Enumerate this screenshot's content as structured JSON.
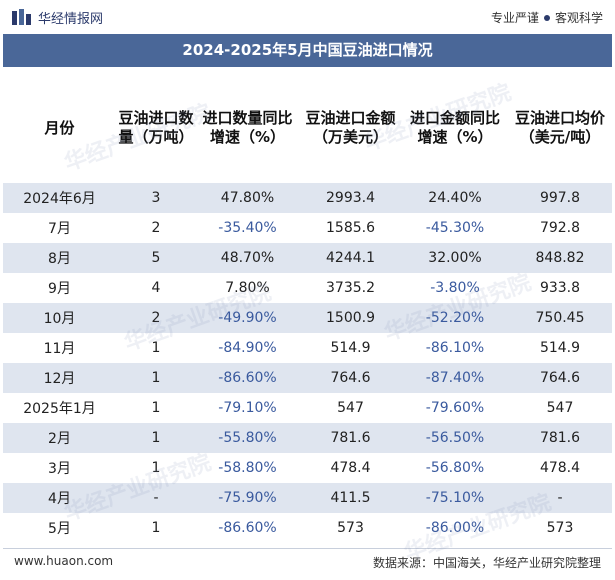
{
  "header": {
    "logo_text": "华经情报网",
    "tag_left": "专业严谨",
    "tag_right": "客观科学"
  },
  "title": "2024-2025年5月中国豆油进口情况",
  "table": {
    "columns": [
      "月份",
      "豆油进口数量（万吨）",
      "进口数量同比增速（%）",
      "豆油进口金额（万美元）",
      "进口金额同比增速（%）",
      "豆油进口均价（美元/吨）"
    ],
    "rows": [
      {
        "month": "2024年6月",
        "qty": "3",
        "qty_yoy": "47.80%",
        "amount": "2993.4",
        "amt_yoy": "24.40%",
        "price": "997.8"
      },
      {
        "month": "7月",
        "qty": "2",
        "qty_yoy": "-35.40%",
        "amount": "1585.6",
        "amt_yoy": "-45.30%",
        "price": "792.8"
      },
      {
        "month": "8月",
        "qty": "5",
        "qty_yoy": "48.70%",
        "amount": "4244.1",
        "amt_yoy": "32.00%",
        "price": "848.82"
      },
      {
        "month": "9月",
        "qty": "4",
        "qty_yoy": "7.80%",
        "amount": "3735.2",
        "amt_yoy": "-3.80%",
        "price": "933.8"
      },
      {
        "month": "10月",
        "qty": "2",
        "qty_yoy": "-49.90%",
        "amount": "1500.9",
        "amt_yoy": "-52.20%",
        "price": "750.45"
      },
      {
        "month": "11月",
        "qty": "1",
        "qty_yoy": "-84.90%",
        "amount": "514.9",
        "amt_yoy": "-86.10%",
        "price": "514.9"
      },
      {
        "month": "12月",
        "qty": "1",
        "qty_yoy": "-86.60%",
        "amount": "764.6",
        "amt_yoy": "-87.40%",
        "price": "764.6"
      },
      {
        "month": "2025年1月",
        "qty": "1",
        "qty_yoy": "-79.10%",
        "amount": "547",
        "amt_yoy": "-79.60%",
        "price": "547"
      },
      {
        "month": "2月",
        "qty": "1",
        "qty_yoy": "-55.80%",
        "amount": "781.6",
        "amt_yoy": "-56.50%",
        "price": "781.6"
      },
      {
        "month": "3月",
        "qty": "1",
        "qty_yoy": "-58.80%",
        "amount": "478.4",
        "amt_yoy": "-56.80%",
        "price": "478.4"
      },
      {
        "month": "4月",
        "qty": "-",
        "qty_yoy": "-75.90%",
        "amount": "411.5",
        "amt_yoy": "-75.10%",
        "price": "-"
      },
      {
        "month": "5月",
        "qty": "1",
        "qty_yoy": "-86.60%",
        "amount": "573",
        "amt_yoy": "-86.00%",
        "price": "573"
      }
    ]
  },
  "footer": {
    "website": "www.huaon.com",
    "source": "数据来源：中国海关，华经产业研究院整理"
  },
  "watermark_text": "华经产业研究院",
  "colors": {
    "title_bg": "#4a6798",
    "stripe": "#dfe5ef",
    "negative": "#3a5a9e",
    "brand": "#2b3a6b"
  }
}
